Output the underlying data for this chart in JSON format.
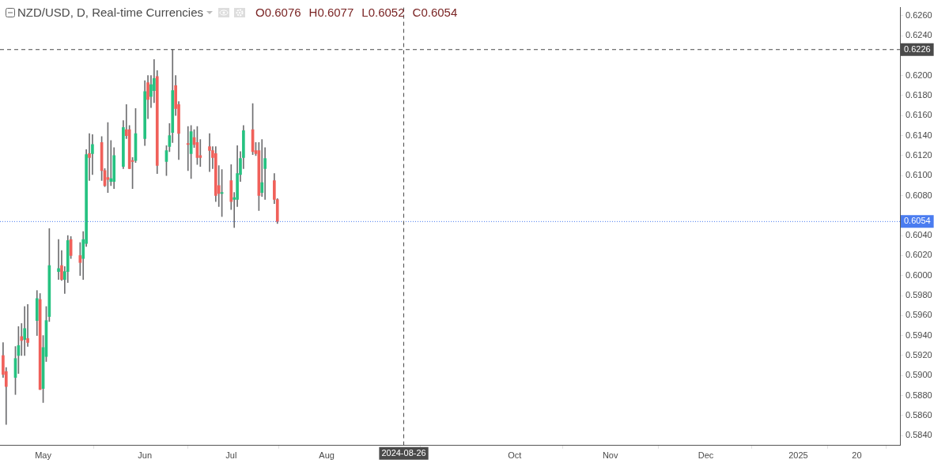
{
  "chart_data": {
    "type": "candlestick",
    "title": "NZD/USD, D, Real-time Currencies",
    "annotations": [
      "O0.6076",
      "H0.6077",
      "L0.6052",
      "C0.6054"
    ],
    "x": [
      "2024-04-18",
      "2024-04-19",
      "2024-04-22",
      "2024-04-23",
      "2024-04-24",
      "2024-04-25",
      "2024-04-26",
      "2024-04-29",
      "2024-04-30",
      "2024-05-01",
      "2024-05-02",
      "2024-05-03",
      "2024-05-06",
      "2024-05-07",
      "2024-05-08",
      "2024-05-09",
      "2024-05-10",
      "2024-05-13",
      "2024-05-14",
      "2024-05-15",
      "2024-05-16",
      "2024-05-17",
      "2024-05-20",
      "2024-05-21",
      "2024-05-22",
      "2024-05-23",
      "2024-05-24",
      "2024-05-27",
      "2024-05-28",
      "2024-05-29",
      "2024-05-30",
      "2024-05-31",
      "2024-06-03",
      "2024-06-04",
      "2024-06-05",
      "2024-06-06",
      "2024-06-07",
      "2024-06-10",
      "2024-06-11",
      "2024-06-12",
      "2024-06-13",
      "2024-06-14",
      "2024-06-17",
      "2024-06-18",
      "2024-06-19",
      "2024-06-20",
      "2024-06-21",
      "2024-06-24",
      "2024-06-25",
      "2024-06-26",
      "2024-06-27",
      "2024-06-28",
      "2024-07-01",
      "2024-07-02",
      "2024-07-03",
      "2024-07-04",
      "2024-07-05",
      "2024-07-08",
      "2024-07-09",
      "2024-07-10",
      "2024-07-11",
      "2024-07-12",
      "2024-07-15",
      "2024-07-16"
    ],
    "ohlc": [
      [
        0.592,
        0.5933,
        0.5898,
        0.5901
      ],
      [
        0.5904,
        0.5908,
        0.5851,
        0.5889
      ],
      [
        0.5898,
        0.5929,
        0.5881,
        0.5917
      ],
      [
        0.592,
        0.5949,
        0.5902,
        0.593
      ],
      [
        0.5939,
        0.5952,
        0.592,
        0.5935
      ],
      [
        0.5936,
        0.5969,
        0.592,
        0.5947
      ],
      [
        0.5937,
        0.5971,
        0.5929,
        0.5933
      ],
      [
        0.5955,
        0.5985,
        0.594,
        0.5977
      ],
      [
        0.5976,
        0.5982,
        0.5886,
        0.5886
      ],
      [
        0.5887,
        0.594,
        0.5873,
        0.5928
      ],
      [
        0.5919,
        0.5969,
        0.5914,
        0.5955
      ],
      [
        0.5959,
        0.6047,
        0.5954,
        0.601
      ],
      [
        0.6004,
        0.6036,
        0.5996,
        0.6007
      ],
      [
        0.601,
        0.6025,
        0.5995,
        0.5996
      ],
      [
        0.5996,
        0.6009,
        0.5982,
        0.6004
      ],
      [
        0.6004,
        0.604,
        0.5993,
        0.6035
      ],
      [
        0.6036,
        0.6039,
        0.6017,
        0.602
      ],
      [
        0.602,
        0.6033,
        0.6,
        0.6013
      ],
      [
        0.6017,
        0.6044,
        0.5996,
        0.6036
      ],
      [
        0.6032,
        0.6126,
        0.6029,
        0.6121
      ],
      [
        0.6122,
        0.6142,
        0.6095,
        0.6118
      ],
      [
        0.6122,
        0.6141,
        0.6101,
        0.6131
      ],
      [
        0.6133,
        0.6139,
        0.6095,
        0.6105
      ],
      [
        0.6105,
        0.6107,
        0.6089,
        0.609
      ],
      [
        0.6098,
        0.6153,
        0.6083,
        0.6096
      ],
      [
        0.6094,
        0.6135,
        0.609,
        0.6097
      ],
      [
        0.6094,
        0.6128,
        0.6087,
        0.612
      ],
      [
        0.6109,
        0.6155,
        0.6107,
        0.6148
      ],
      [
        0.6146,
        0.6171,
        0.6137,
        0.614
      ],
      [
        0.6146,
        0.615,
        0.6107,
        0.6107
      ],
      [
        0.6115,
        0.6118,
        0.6087,
        0.6114
      ],
      [
        0.6115,
        0.6167,
        0.6113,
        0.6142
      ],
      [
        0.6137,
        0.6195,
        0.613,
        0.6184
      ],
      [
        0.6193,
        0.62,
        0.6157,
        0.6176
      ],
      [
        0.6179,
        0.62,
        0.6168,
        0.6191
      ],
      [
        0.6185,
        0.6216,
        0.6173,
        0.6197
      ],
      [
        0.6199,
        0.6205,
        0.6102,
        0.611
      ],
      [
        0.6114,
        0.613,
        0.61,
        0.6125
      ],
      [
        0.6129,
        0.6152,
        0.6124,
        0.614
      ],
      [
        0.6143,
        0.6226,
        0.6133,
        0.6185
      ],
      [
        0.619,
        0.62,
        0.616,
        0.6167
      ],
      [
        0.6171,
        0.6174,
        0.6116,
        0.6142
      ],
      [
        0.6132,
        0.6149,
        0.6105,
        0.6131
      ],
      [
        0.6122,
        0.615,
        0.6097,
        0.6144
      ],
      [
        0.6138,
        0.6146,
        0.6128,
        0.6131
      ],
      [
        0.6133,
        0.6149,
        0.6111,
        0.6118
      ],
      [
        0.612,
        0.6136,
        0.6109,
        0.6118
      ],
      [
        0.6129,
        0.6142,
        0.6104,
        0.6125
      ],
      [
        0.6125,
        0.6129,
        0.6107,
        0.6118
      ],
      [
        0.6122,
        0.6129,
        0.6074,
        0.608
      ],
      [
        0.609,
        0.611,
        0.6069,
        0.6082
      ],
      [
        0.6082,
        0.6106,
        0.6059,
        0.6083
      ],
      [
        0.6095,
        0.6111,
        0.6066,
        0.6074
      ],
      [
        0.6076,
        0.6083,
        0.6048,
        0.6078
      ],
      [
        0.6076,
        0.613,
        0.6069,
        0.6102
      ],
      [
        0.6101,
        0.6124,
        0.6094,
        0.6117
      ],
      [
        0.6118,
        0.615,
        0.6107,
        0.6145
      ],
      [
        0.6146,
        0.6172,
        0.6121,
        0.6124
      ],
      [
        0.6125,
        0.6133,
        0.612,
        0.6122
      ],
      [
        0.6125,
        0.6133,
        0.6065,
        0.608
      ],
      [
        0.6083,
        0.6136,
        0.6079,
        0.6093
      ],
      [
        0.6107,
        0.6128,
        0.6076,
        0.6117
      ],
      [
        0.6095,
        0.6102,
        0.6072,
        0.6076
      ],
      [
        0.6076,
        0.6077,
        0.6052,
        0.6054
      ]
    ],
    "colors": [
      "#f0605a",
      "#f0605a",
      "#26c281",
      "#26c281",
      "#f0605a",
      "#26c281",
      "#f0605a",
      "#26c281",
      "#f0605a",
      "#26c281",
      "#26c281",
      "#26c281",
      "#26c281",
      "#f0605a",
      "#26c281",
      "#26c281",
      "#f0605a",
      "#f0605a",
      "#26c281",
      "#26c281",
      "#f0605a",
      "#26c281",
      "#f0605a",
      "#f0605a",
      "#f0605a",
      "#26c281",
      "#26c281",
      "#26c281",
      "#f0605a",
      "#f0605a",
      "#f0605a",
      "#26c281",
      "#26c281",
      "#f0605a",
      "#26c281",
      "#26c281",
      "#f0605a",
      "#26c281",
      "#26c281",
      "#26c281",
      "#f0605a",
      "#f0605a",
      "#f0605a",
      "#26c281",
      "#f0605a",
      "#f0605a",
      "#f0605a",
      "#f0605a",
      "#f0605a",
      "#f0605a",
      "#f0605a",
      "#26c281",
      "#f0605a",
      "#26c281",
      "#26c281",
      "#26c281",
      "#26c281",
      "#f0605a",
      "#f0605a",
      "#f0605a",
      "#26c281",
      "#26c281",
      "#f0605a",
      "#f0605a"
    ],
    "xlim": [
      "2024-04-17",
      "2025-02-03"
    ],
    "xticks": [
      {
        "value": "2024-05-01",
        "label": "May"
      },
      {
        "value": "2024-06-03",
        "label": "Jun"
      },
      {
        "value": "2024-07-01",
        "label": "Jul"
      },
      {
        "value": "2024-08-01",
        "label": "Aug"
      },
      {
        "value": "2024-10-01",
        "label": "Oct"
      },
      {
        "value": "2024-11-01",
        "label": "Nov"
      },
      {
        "value": "2024-12-02",
        "label": "Dec"
      },
      {
        "value": "2025-01-01",
        "label": "2025"
      },
      {
        "value": "2025-01-20",
        "label": "20"
      }
    ],
    "ylim": [
      0.583,
      0.6268
    ],
    "yticks": [
      {
        "value": 0.584,
        "label": "0.5840"
      },
      {
        "value": 0.586,
        "label": "0.5860"
      },
      {
        "value": 0.588,
        "label": "0.5880"
      },
      {
        "value": 0.59,
        "label": "0.5900"
      },
      {
        "value": 0.592,
        "label": "0.5920"
      },
      {
        "value": 0.594,
        "label": "0.5940"
      },
      {
        "value": 0.596,
        "label": "0.5960"
      },
      {
        "value": 0.598,
        "label": "0.5980"
      },
      {
        "value": 0.6,
        "label": "0.6000"
      },
      {
        "value": 0.602,
        "label": "0.6020"
      },
      {
        "value": 0.604,
        "label": "0.6040"
      },
      {
        "value": 0.606,
        "label": null
      },
      {
        "value": 0.608,
        "label": "0.6080"
      },
      {
        "value": 0.61,
        "label": "0.6100"
      },
      {
        "value": 0.612,
        "label": "0.6120"
      },
      {
        "value": 0.614,
        "label": "0.6140"
      },
      {
        "value": 0.616,
        "label": "0.6160"
      },
      {
        "value": 0.618,
        "label": "0.6180"
      },
      {
        "value": 0.62,
        "label": "0.6200"
      },
      {
        "value": 0.622,
        "label": null
      },
      {
        "value": 0.624,
        "label": "0.6240"
      },
      {
        "value": 0.626,
        "label": "0.6260"
      }
    ],
    "ref_lines": [
      {
        "axis": "y",
        "value": 0.6226,
        "label": "0.6226",
        "color": "#4a4a4a",
        "line_style": "dashed"
      },
      {
        "axis": "y",
        "value": 0.6054,
        "label": "0.6054",
        "color": "#4a7cf0",
        "line_style": "dotted"
      },
      {
        "axis": "x",
        "value": "2024-08-26",
        "label": "2024-08-26",
        "color": "#4a4a4a",
        "line_style": "dashed"
      }
    ],
    "grid": false,
    "legend": false
  }
}
